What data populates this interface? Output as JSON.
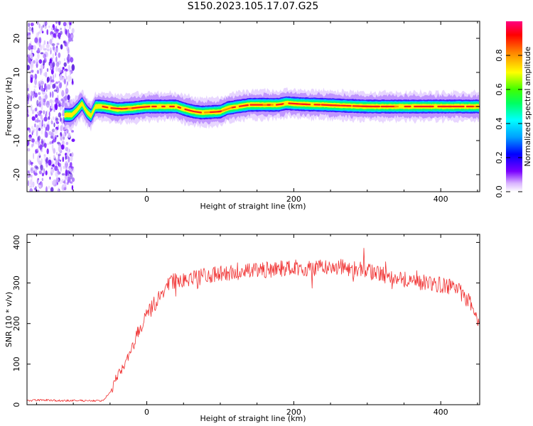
{
  "title": "S150.2023.105.17.07.G25",
  "colors": {
    "snr_line": "#f03232",
    "frame": "#000000"
  },
  "chart_data": [
    {
      "type": "heatmap",
      "xlabel": "Height of straight line (km)",
      "ylabel": "Frequency (Hz)",
      "xlim": [
        -163,
        453
      ],
      "ylim": [
        -25,
        25
      ],
      "x_ticks": [
        0,
        200,
        400
      ],
      "y_ticks": [
        -20,
        -10,
        0,
        10,
        20
      ],
      "noise_region_x": [
        -163,
        -100
      ],
      "ridge": {
        "x": [
          -112,
          -102,
          -95,
          -88,
          -82,
          -76,
          -70,
          -60,
          -40,
          -20,
          0,
          20,
          40,
          55,
          65,
          75,
          100,
          110,
          125,
          140,
          160,
          180,
          190,
          200,
          220,
          240,
          260,
          300,
          340,
          380,
          420,
          453
        ],
        "y": [
          -2.5,
          -2.5,
          -1.0,
          0.8,
          -1.5,
          -2.8,
          0.0,
          0.0,
          -0.8,
          -0.5,
          0.0,
          0.0,
          0.0,
          -1.0,
          -1.5,
          -1.8,
          -1.5,
          -0.5,
          0.0,
          0.5,
          0.5,
          0.5,
          1.0,
          0.8,
          0.6,
          0.5,
          0.3,
          0.0,
          0.0,
          0.0,
          0.0,
          0.0
        ]
      },
      "colorbar": {
        "label": "Normalized spectral amplitude",
        "range": [
          0,
          1
        ],
        "ticks": [
          "0.0",
          "0.2",
          "0.4",
          "0.6",
          "0.8"
        ]
      }
    },
    {
      "type": "line",
      "xlabel": "Height of straight line (km)",
      "ylabel": "SNR (10 * v/v)",
      "xlim": [
        -163,
        453
      ],
      "ylim": [
        0,
        420
      ],
      "x_ticks": [
        0,
        200,
        400
      ],
      "y_ticks": [
        0,
        100,
        200,
        300,
        400
      ],
      "series": [
        {
          "color": "#f03232",
          "x": [
            -163,
            -140,
            -120,
            -100,
            -80,
            -60,
            -50,
            -40,
            -30,
            -20,
            -10,
            0,
            10,
            20,
            30,
            40,
            60,
            80,
            100,
            120,
            140,
            160,
            180,
            200,
            220,
            240,
            260,
            280,
            300,
            320,
            340,
            360,
            380,
            400,
            420,
            430,
            440,
            453
          ],
          "values": [
            10,
            12,
            10,
            10,
            10,
            10,
            30,
            70,
            100,
            140,
            190,
            220,
            245,
            275,
            300,
            305,
            310,
            318,
            322,
            325,
            328,
            332,
            335,
            340,
            335,
            338,
            340,
            335,
            330,
            320,
            315,
            305,
            300,
            295,
            290,
            270,
            250,
            200
          ],
          "noise_amplitude": 40
        }
      ]
    }
  ]
}
